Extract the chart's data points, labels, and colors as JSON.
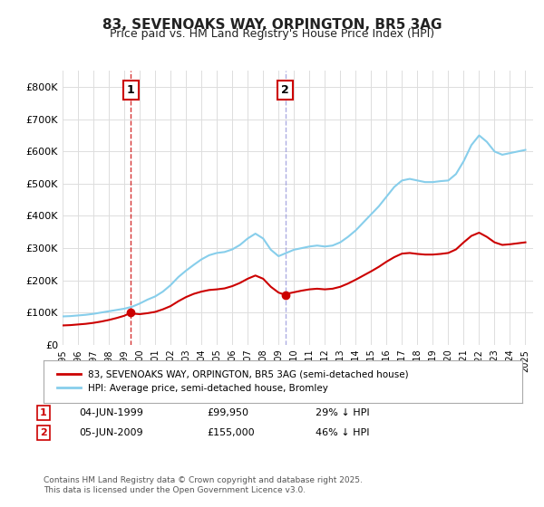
{
  "title": "83, SEVENOAKS WAY, ORPINGTON, BR5 3AG",
  "subtitle": "Price paid vs. HM Land Registry's House Price Index (HPI)",
  "legend_line1": "83, SEVENOAKS WAY, ORPINGTON, BR5 3AG (semi-detached house)",
  "legend_line2": "HPI: Average price, semi-detached house, Bromley",
  "footer": "Contains HM Land Registry data © Crown copyright and database right 2025.\nThis data is licensed under the Open Government Licence v3.0.",
  "annotation1_label": "1",
  "annotation1_date": "04-JUN-1999",
  "annotation1_price": "£99,950",
  "annotation1_hpi": "29% ↓ HPI",
  "annotation2_label": "2",
  "annotation2_date": "05-JUN-2009",
  "annotation2_price": "£155,000",
  "annotation2_hpi": "46% ↓ HPI",
  "red_color": "#cc0000",
  "blue_color": "#87CEEB",
  "sale1_year": 1999.43,
  "sale1_price": 99950,
  "sale2_year": 2009.43,
  "sale2_price": 155000,
  "ylim_max": 850000,
  "background_color": "#ffffff",
  "grid_color": "#dddddd"
}
